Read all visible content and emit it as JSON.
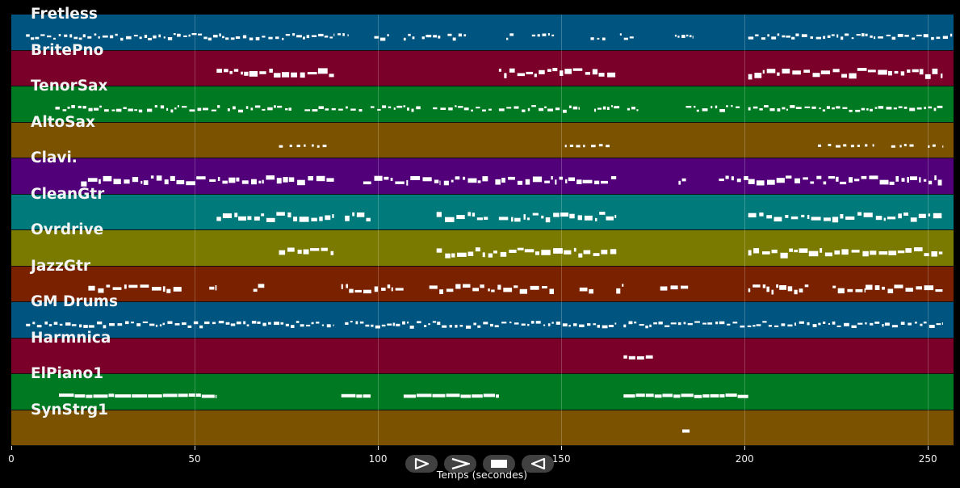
{
  "tracks": [
    {
      "name": "Fretless",
      "color": "#005580",
      "density": "dense-small",
      "segments": [
        [
          4,
          88
        ],
        [
          89,
          92
        ],
        [
          99,
          103
        ],
        [
          107,
          110
        ],
        [
          112,
          117
        ],
        [
          119,
          124
        ],
        [
          135,
          137
        ],
        [
          142,
          148
        ],
        [
          158,
          162
        ],
        [
          166,
          170
        ],
        [
          181,
          186
        ],
        [
          201,
          257
        ]
      ]
    },
    {
      "name": "BritePno",
      "color": "#7a0029",
      "density": "blocks",
      "segments": [
        [
          56,
          88
        ],
        [
          133,
          165
        ],
        [
          201,
          254
        ]
      ]
    },
    {
      "name": "TenorSax",
      "color": "#007a22",
      "density": "dense-small",
      "segments": [
        [
          12,
          36
        ],
        [
          37,
          57
        ],
        [
          59,
          77
        ],
        [
          80,
          96
        ],
        [
          98,
          112
        ],
        [
          115,
          131
        ],
        [
          133,
          155
        ],
        [
          159,
          166
        ],
        [
          168,
          171
        ],
        [
          184,
          199
        ],
        [
          201,
          254
        ]
      ]
    },
    {
      "name": "AltoSax",
      "color": "#7a5200",
      "density": "sparse",
      "segments": [
        [
          73,
          88
        ],
        [
          151,
          165
        ],
        [
          220,
          228
        ],
        [
          229,
          236
        ],
        [
          240,
          247
        ],
        [
          250,
          254
        ]
      ]
    },
    {
      "name": "Clavi.",
      "color": "#52007a",
      "density": "blocks",
      "segments": [
        [
          19,
          53
        ],
        [
          54,
          88
        ],
        [
          96,
          117
        ],
        [
          118,
          130
        ],
        [
          132,
          165
        ],
        [
          182,
          184
        ],
        [
          193,
          201
        ],
        [
          201,
          254
        ]
      ]
    },
    {
      "name": "CleanGtr",
      "color": "#007a7a",
      "density": "blocks",
      "segments": [
        [
          56,
          88
        ],
        [
          91,
          98
        ],
        [
          116,
          130
        ],
        [
          133,
          165
        ],
        [
          201,
          254
        ]
      ]
    },
    {
      "name": "Ovrdrive",
      "color": "#7a7a00",
      "density": "blocks",
      "segments": [
        [
          73,
          88
        ],
        [
          116,
          165
        ],
        [
          201,
          254
        ]
      ]
    },
    {
      "name": "JazzGtr",
      "color": "#7a2200",
      "density": "blocks",
      "segments": [
        [
          21,
          47
        ],
        [
          54,
          56
        ],
        [
          66,
          69
        ],
        [
          90,
          107
        ],
        [
          114,
          129
        ],
        [
          130,
          148
        ],
        [
          155,
          159
        ],
        [
          165,
          167
        ],
        [
          177,
          185
        ],
        [
          201,
          218
        ],
        [
          224,
          233
        ],
        [
          233,
          254
        ]
      ]
    },
    {
      "name": "GM Drums",
      "color": "#005580",
      "density": "dense-small",
      "segments": [
        [
          4,
          88
        ],
        [
          91,
          165
        ],
        [
          167,
          254
        ]
      ]
    },
    {
      "name": "Harmnica",
      "color": "#7a0029",
      "density": "single",
      "segments": [
        [
          167,
          175
        ]
      ]
    },
    {
      "name": "ElPiano1",
      "color": "#007a22",
      "density": "bar",
      "segments": [
        [
          13,
          56
        ],
        [
          90,
          98
        ],
        [
          107,
          133
        ],
        [
          167,
          201
        ]
      ]
    },
    {
      "name": "SynStrg1",
      "color": "#7a5200",
      "density": "single",
      "segments": [
        [
          183,
          185
        ]
      ]
    }
  ],
  "axis": {
    "label": "Temps (secondes)",
    "min": 0,
    "max": 257,
    "ticks": [
      0,
      50,
      100,
      150,
      200,
      250
    ],
    "tick_labels": [
      "0",
      "50",
      "100",
      "150",
      "200",
      "250"
    ]
  },
  "controls": [
    {
      "name": "play",
      "icon": "play-icon"
    },
    {
      "name": "fast-forward",
      "icon": "fast-forward-icon"
    },
    {
      "name": "stop",
      "icon": "stop-icon"
    },
    {
      "name": "rewind",
      "icon": "rewind-icon"
    }
  ]
}
